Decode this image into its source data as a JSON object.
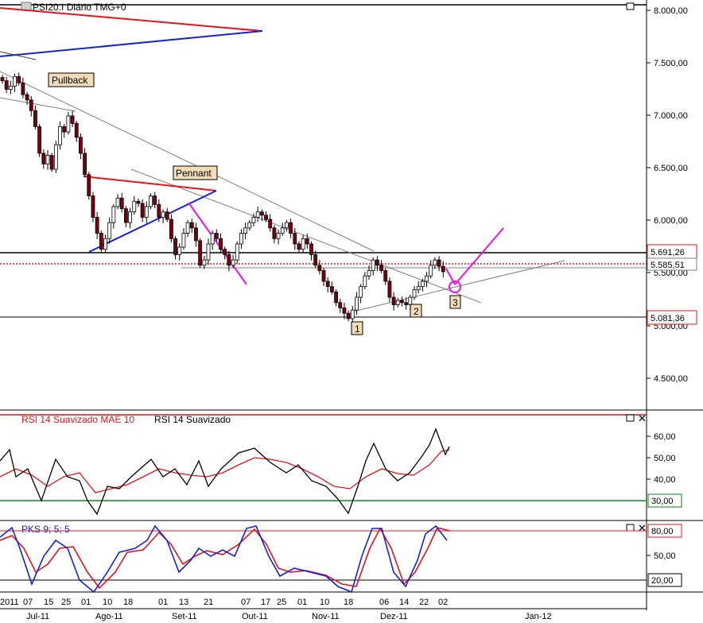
{
  "colors": {
    "up": "#ffffff",
    "down": "#7a0010",
    "red": "#e8141a",
    "blue": "#1423d6",
    "black": "#000000",
    "magenta": "#ee11ee",
    "green": "#0a8a18",
    "grey": "#808080",
    "tag_bg": "#f3dcb8"
  },
  "header": {
    "title": "PSI20.I Diário TMG+0"
  },
  "rsi_panel": {
    "label_a": "RSI 14 Suavizado MAE 10",
    "label_b": "RSI 14 Suavizado",
    "ticks": [
      "60,00",
      "50,00",
      "40,00"
    ],
    "level": "30,00"
  },
  "pks_panel": {
    "label": "PKS 9; 5; 5",
    "level_top": "80,00",
    "tick_mid": "50,00",
    "level_bottom": "20,00"
  },
  "price_axis": {
    "ticks": [
      "8.000,00",
      "7.500,00",
      "7.000,00",
      "6.500,00",
      "6.000,00",
      "5.500,00",
      "5.000,00",
      "4.500,00"
    ],
    "price_tags": [
      "5.691,26",
      "5.585,51",
      "5.081,36"
    ]
  },
  "time_axis": {
    "days": [
      "2011",
      "07",
      "15",
      "25",
      "01",
      "10",
      "18",
      "01",
      "13",
      "21",
      "07",
      "17",
      "25",
      "01",
      "10",
      "18",
      "06",
      "14",
      "22",
      "02"
    ],
    "months": [
      "Jul-11",
      "Ago-11",
      "Set-11",
      "Out-11",
      "Nov-11",
      "Dez-11",
      "Jan-12"
    ]
  },
  "annotations": {
    "pullback": "Pullback",
    "pennant": "Pennant",
    "wave1": "1",
    "wave2": "2",
    "wave3": "3"
  },
  "chart_data": {
    "type": "candlestick",
    "title": "PSI20.I Diário TMG+0",
    "ylim": [
      4300,
      8100
    ],
    "levels": [
      5691.26,
      5585.51,
      5081.36
    ],
    "series": [
      {
        "name": "PSI20.I",
        "close": [
          7380,
          7300,
          7330,
          7420,
          7360,
          7250,
          7200,
          7100,
          6950,
          6700,
          6600,
          6680,
          6550,
          6780,
          6950,
          6900,
          7050,
          6980,
          6850,
          6700,
          6500,
          6300,
          6100,
          5950,
          5800,
          5900,
          6050,
          6200,
          6280,
          6180,
          6050,
          6150,
          6250,
          6230,
          6100,
          6200,
          6300,
          6220,
          6100,
          6150,
          6080,
          5900,
          5750,
          5820,
          5950,
          6050,
          6000,
          5880,
          5650,
          5700,
          5850,
          5950,
          5900,
          5800,
          5750,
          5650,
          5700,
          5850,
          5950,
          6000,
          6050,
          6100,
          6150,
          6120,
          6080,
          6000,
          5900,
          5950,
          6000,
          6050,
          5950,
          5850,
          5800,
          5900,
          5850,
          5750,
          5650,
          5600,
          5500,
          5450,
          5400,
          5300,
          5250,
          5200,
          5150,
          5230,
          5350,
          5450,
          5550,
          5600,
          5700,
          5650,
          5600,
          5500,
          5350,
          5280,
          5320,
          5300,
          5280,
          5350,
          5420,
          5450,
          5500,
          5550,
          5650,
          5700,
          5640,
          5590
        ]
      }
    ],
    "rsi_series": [
      {
        "name": "RSI 14 Suavizado MAE 10",
        "ylim": [
          20,
          70
        ]
      },
      {
        "name": "RSI 14 Suavizado",
        "ylim": [
          20,
          70
        ]
      }
    ],
    "pks_series": [
      {
        "name": "PKS 9; 5; 5",
        "ylim": [
          0,
          100
        ]
      }
    ]
  }
}
